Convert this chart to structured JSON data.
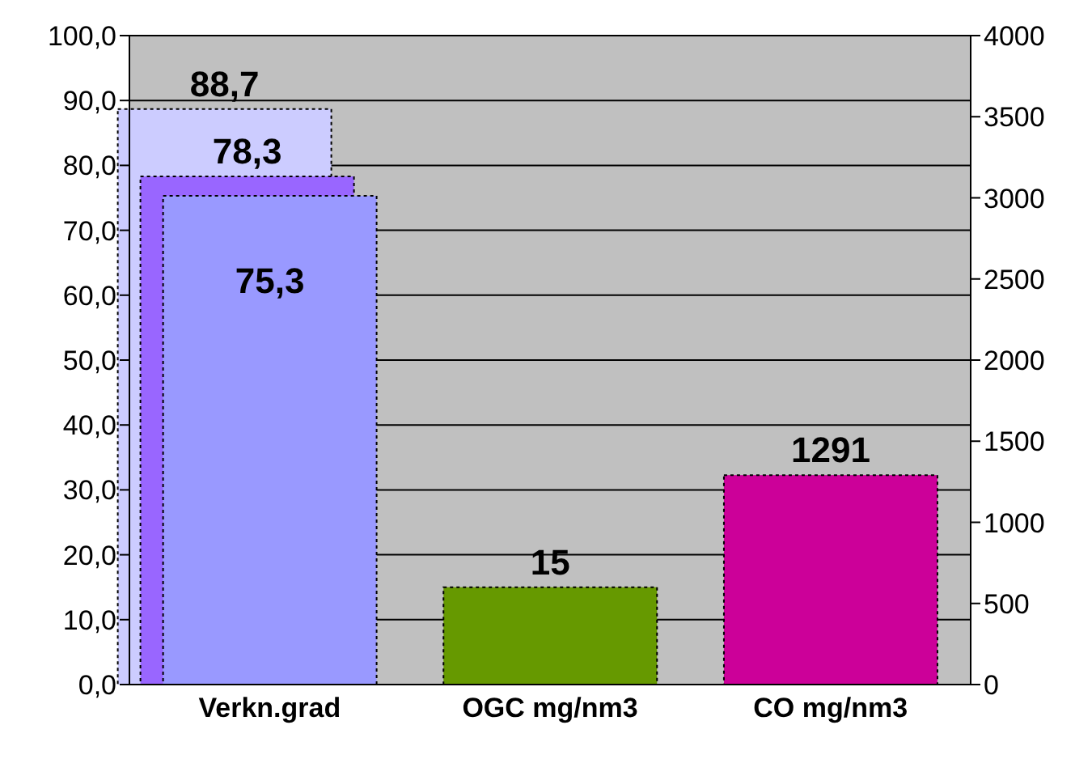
{
  "chart_data": {
    "type": "bar",
    "categories": [
      "Verkn.grad",
      "OGC mg/nm3",
      "CO mg/nm3"
    ],
    "series": [
      {
        "color": "#ccccff",
        "values": [
          88.7,
          null,
          null
        ],
        "value_labels": [
          "88,7",
          null,
          null
        ]
      },
      {
        "color": "#9966ff",
        "values": [
          78.3,
          null,
          null
        ],
        "value_labels": [
          "78,3",
          null,
          null
        ]
      },
      {
        "color": "#9999ff",
        "values": [
          75.3,
          null,
          null
        ],
        "value_labels": [
          "75,3",
          null,
          null
        ]
      },
      {
        "color": "#669900",
        "values": [
          null,
          15,
          null
        ],
        "value_labels": [
          null,
          "15",
          null
        ]
      },
      {
        "color": "#cc0099",
        "axis": "y2",
        "values": [
          null,
          null,
          1291
        ],
        "value_labels": [
          null,
          null,
          "1291"
        ]
      }
    ],
    "ylim": [
      0,
      100
    ],
    "yticks": [
      {
        "value": 0,
        "label": "0,0"
      },
      {
        "value": 10,
        "label": "10,0"
      },
      {
        "value": 20,
        "label": "20,0"
      },
      {
        "value": 30,
        "label": "30,0"
      },
      {
        "value": 40,
        "label": "40,0"
      },
      {
        "value": 50,
        "label": "50,0"
      },
      {
        "value": 60,
        "label": "60,0"
      },
      {
        "value": 70,
        "label": "70,0"
      },
      {
        "value": 80,
        "label": "80,0"
      },
      {
        "value": 90,
        "label": "90,0"
      },
      {
        "value": 100,
        "label": "100,0"
      }
    ],
    "y2lim": [
      0,
      4000
    ],
    "y2ticks": [
      0,
      500,
      1000,
      1500,
      2000,
      2500,
      3000,
      3500,
      4000
    ],
    "grid": "y",
    "legend": false
  }
}
